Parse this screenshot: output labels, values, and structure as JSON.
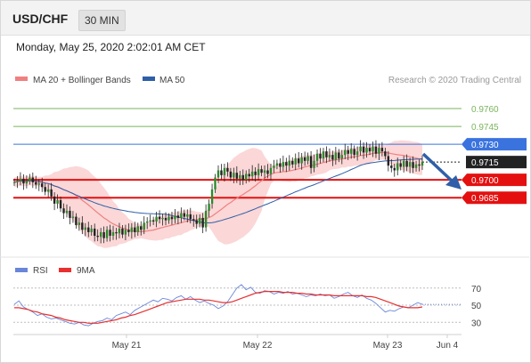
{
  "header": {
    "pair": "USD/CHF",
    "timeframe": "30 MIN"
  },
  "datetime": "Monday, May 25, 2020 2:02:01 AM CET",
  "legend": {
    "ma20": "MA 20 + Bollinger Bands",
    "ma50": "MA 50"
  },
  "credit": "Research © 2020 Trading Central",
  "rsi_legend": {
    "rsi": "RSI",
    "ma9": "9MA"
  },
  "colors": {
    "support": "#e41010",
    "resistance_target": "#7ab55c",
    "pivot": "#3a73de",
    "current": "#222222",
    "ma20": "#f08080",
    "ma50": "#2f5fa8",
    "bollinger": "#f9c9c9",
    "rsi": "#6a86d9",
    "rsi_ma": "#e83030",
    "arrow": "#2f5fa8"
  },
  "chart_data": [
    {
      "type": "line",
      "title": "USD/CHF 30 MIN",
      "x_ticks": [
        "May 21",
        "May 22",
        "May 23",
        "Jun 4"
      ],
      "ylim": [
        0.9638,
        0.9778
      ],
      "levels": [
        {
          "label": "0.9760",
          "value": 0.976,
          "role": "resistance_target"
        },
        {
          "label": "0.9745",
          "value": 0.9745,
          "role": "resistance_target"
        },
        {
          "label": "0.9730",
          "value": 0.973,
          "role": "pivot"
        },
        {
          "label": "0.9715",
          "value": 0.9715,
          "role": "current"
        },
        {
          "label": "0.9700",
          "value": 0.97,
          "role": "support"
        },
        {
          "label": "0.9685",
          "value": 0.9685,
          "role": "support"
        }
      ],
      "close": [
        0.9698,
        0.9699,
        0.9701,
        0.9697,
        0.9699,
        0.9702,
        0.9698,
        0.9696,
        0.9697,
        0.9694,
        0.969,
        0.9692,
        0.9686,
        0.968,
        0.9683,
        0.9676,
        0.9672,
        0.9674,
        0.9668,
        0.9669,
        0.9662,
        0.9664,
        0.9658,
        0.966,
        0.9656,
        0.9659,
        0.9653,
        0.9652,
        0.9656,
        0.9651,
        0.9658,
        0.9653,
        0.9656,
        0.9655,
        0.9659,
        0.9654,
        0.9658,
        0.9656,
        0.966,
        0.9656,
        0.9661,
        0.9658,
        0.9664,
        0.9665,
        0.9666,
        0.9665,
        0.9669,
        0.9667,
        0.9668,
        0.9666,
        0.9669,
        0.9667,
        0.967,
        0.9668,
        0.9672,
        0.9669,
        0.9671,
        0.9667,
        0.9666,
        0.9663,
        0.9668,
        0.966,
        0.9674,
        0.968,
        0.9692,
        0.9702,
        0.9708,
        0.9704,
        0.971,
        0.9707,
        0.9702,
        0.9706,
        0.9701,
        0.9704,
        0.97,
        0.9705,
        0.9703,
        0.9707,
        0.9704,
        0.9709,
        0.9706,
        0.9708,
        0.9705,
        0.971,
        0.9712,
        0.9714,
        0.9711,
        0.9715,
        0.9712,
        0.9716,
        0.9713,
        0.9718,
        0.9714,
        0.9719,
        0.9716,
        0.972,
        0.971,
        0.9716,
        0.9722,
        0.9718,
        0.9724,
        0.9719,
        0.9721,
        0.9717,
        0.9723,
        0.9718,
        0.9721,
        0.9725,
        0.9722,
        0.9726,
        0.9721,
        0.9724,
        0.9728,
        0.9723,
        0.9727,
        0.9724,
        0.9728,
        0.9722,
        0.9727,
        0.9724,
        0.972,
        0.9712,
        0.971,
        0.9708,
        0.9714,
        0.9711,
        0.9716,
        0.9711,
        0.9715,
        0.971,
        0.9713,
        0.9712,
        0.9715
      ]
    },
    {
      "type": "line",
      "title": "RSI",
      "ylim": [
        22,
        76
      ],
      "y_ticks": [
        "70",
        "50",
        "30"
      ],
      "series": [
        {
          "name": "RSI",
          "values": [
            51,
            55,
            48,
            45,
            42,
            38,
            40,
            36,
            34,
            35,
            33,
            31,
            29,
            28,
            30,
            27,
            26,
            29,
            31,
            32,
            35,
            33,
            38,
            40,
            42,
            39,
            44,
            47,
            50,
            53,
            56,
            54,
            58,
            57,
            55,
            59,
            61,
            57,
            60,
            56,
            53,
            55,
            52,
            50,
            46,
            49,
            54,
            62,
            70,
            74,
            68,
            71,
            65,
            64,
            67,
            66,
            63,
            65,
            64,
            66,
            63,
            64,
            62,
            60,
            62,
            61,
            63,
            61,
            62,
            58,
            60,
            63,
            65,
            61,
            59,
            62,
            58,
            56,
            52,
            47,
            42,
            44,
            43,
            46,
            48,
            47,
            50,
            53,
            51
          ]
        },
        {
          "name": "9MA",
          "values": [
            47,
            47,
            46,
            45,
            43,
            42,
            40,
            39,
            38,
            36,
            35,
            33,
            32,
            31,
            30,
            30,
            29,
            29,
            29,
            30,
            31,
            32,
            33,
            35,
            36,
            38,
            39,
            41,
            43,
            45,
            47,
            49,
            51,
            53,
            54,
            55,
            56,
            57,
            57,
            57,
            57,
            56,
            56,
            55,
            54,
            53,
            53,
            54,
            56,
            58,
            60,
            62,
            64,
            65,
            66,
            66,
            66,
            66,
            65,
            65,
            65,
            64,
            64,
            63,
            63,
            62,
            62,
            62,
            62,
            61,
            61,
            61,
            61,
            61,
            61,
            61,
            60,
            60,
            59,
            57,
            55,
            53,
            51,
            49,
            48,
            47,
            47,
            47,
            48
          ]
        }
      ]
    }
  ]
}
